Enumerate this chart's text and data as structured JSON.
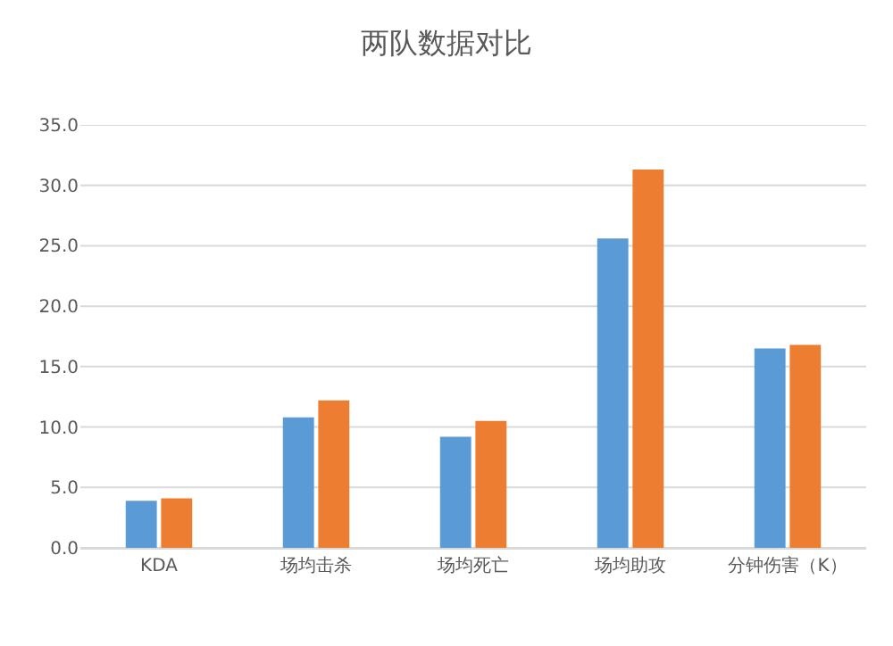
{
  "chart_data": {
    "type": "bar",
    "title": "两队数据对比",
    "categories": [
      "KDA",
      "场均击杀",
      "场均死亡",
      "场均助攻",
      "分钟伤害（K）"
    ],
    "series": [
      {
        "color": "#5b9bd5",
        "values": [
          3.9,
          10.8,
          9.2,
          25.6,
          16.5
        ]
      },
      {
        "color": "#ed7d31",
        "values": [
          4.1,
          12.2,
          10.5,
          31.3,
          16.8
        ]
      }
    ],
    "ylim": [
      0,
      35
    ],
    "yticks": [
      {
        "value": 0,
        "label": "0.0"
      },
      {
        "value": 5,
        "label": "5.0"
      },
      {
        "value": 10,
        "label": "10.0"
      },
      {
        "value": 15,
        "label": "15.0"
      },
      {
        "value": 20,
        "label": "20.0"
      },
      {
        "value": 25,
        "label": "25.0"
      },
      {
        "value": 30,
        "label": "30.0"
      },
      {
        "value": 35,
        "label": "35.0"
      }
    ],
    "grid": "y"
  }
}
